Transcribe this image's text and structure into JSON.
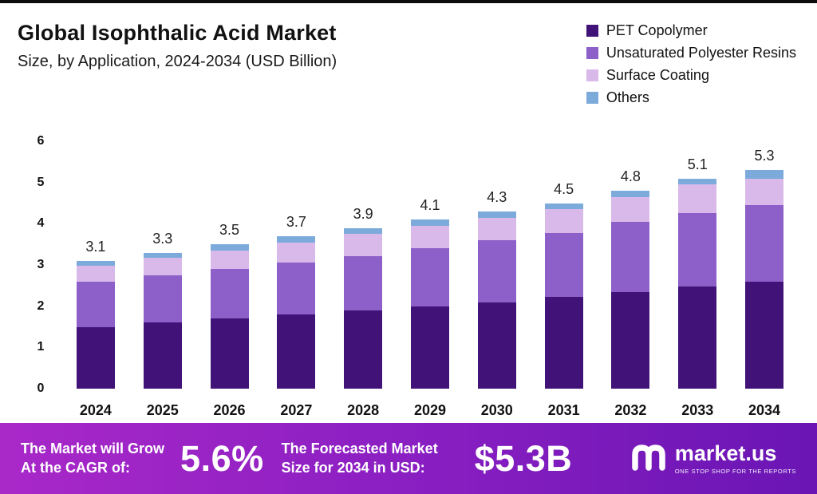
{
  "header": {
    "title": "Global Isophthalic Acid Market",
    "subtitle": "Size, by Application, 2024-2034 (USD Billion)"
  },
  "legend": [
    {
      "label": "PET Copolymer",
      "color": "#411277"
    },
    {
      "label": "Unsaturated Polyester Resins",
      "color": "#8d5fc8"
    },
    {
      "label": "Surface Coating",
      "color": "#d8b9ea"
    },
    {
      "label": "Others",
      "color": "#7cabdb"
    }
  ],
  "chart_data": {
    "type": "bar",
    "stacked": true,
    "title": "Global Isophthalic Acid Market Size, by Application, 2024-2034 (USD Billion)",
    "categories": [
      "2024",
      "2025",
      "2026",
      "2027",
      "2028",
      "2029",
      "2030",
      "2031",
      "2032",
      "2033",
      "2034"
    ],
    "series": [
      {
        "name": "PET Copolymer",
        "color": "#411277",
        "values": [
          1.5,
          1.6,
          1.7,
          1.8,
          1.9,
          2.0,
          2.1,
          2.22,
          2.35,
          2.48,
          2.6
        ]
      },
      {
        "name": "Unsaturated Polyester Resins",
        "color": "#8d5fc8",
        "values": [
          1.1,
          1.15,
          1.2,
          1.25,
          1.32,
          1.4,
          1.5,
          1.55,
          1.7,
          1.77,
          1.85
        ]
      },
      {
        "name": "Surface Coating",
        "color": "#d8b9ea",
        "values": [
          0.38,
          0.43,
          0.45,
          0.5,
          0.53,
          0.55,
          0.55,
          0.58,
          0.6,
          0.7,
          0.65
        ]
      },
      {
        "name": "Others",
        "color": "#7cabdb",
        "values": [
          0.12,
          0.12,
          0.15,
          0.15,
          0.15,
          0.15,
          0.15,
          0.15,
          0.15,
          0.15,
          0.2
        ]
      }
    ],
    "totals": [
      3.1,
      3.3,
      3.5,
      3.7,
      3.9,
      4.1,
      4.3,
      4.5,
      4.8,
      5.1,
      5.3
    ],
    "xlabel": "",
    "ylabel": "",
    "ylim": [
      0,
      6
    ],
    "yticks": [
      0,
      1,
      2,
      3,
      4,
      5,
      6
    ],
    "grid": false,
    "legend_position": "top-right"
  },
  "banner": {
    "cagr_label_line1": "The Market will Grow",
    "cagr_label_line2": "At the CAGR of:",
    "cagr_value": "5.6%",
    "forecast_label_line1": "The Forecasted Market",
    "forecast_label_line2": "Size for 2034 in USD:",
    "forecast_value": "$5.3B",
    "brand_name": "market.us",
    "brand_tagline": "ONE STOP SHOP FOR THE REPORTS",
    "gradient_left": "#a928c8",
    "gradient_mid": "#8a1fc2",
    "gradient_right": "#6a15b4"
  }
}
